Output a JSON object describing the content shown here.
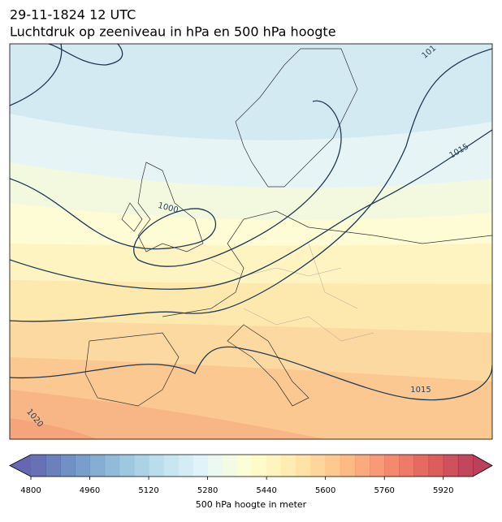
{
  "header": {
    "title": [
      "29-11-1824 12 UTC",
      "Luchtdruk op zeeniveau in hPa en 500 hPa hoogte"
    ]
  },
  "map": {
    "contour_labels": [
      "1015",
      "1000",
      "1015",
      "1020",
      "101"
    ]
  },
  "colorbar": {
    "label": "500 hPa hoogte in meter",
    "range": [
      4800,
      6000
    ],
    "ticks": [
      4800,
      4960,
      5120,
      5280,
      5440,
      5600,
      5760,
      5920
    ],
    "colormap": "RdYlBu_r"
  }
}
